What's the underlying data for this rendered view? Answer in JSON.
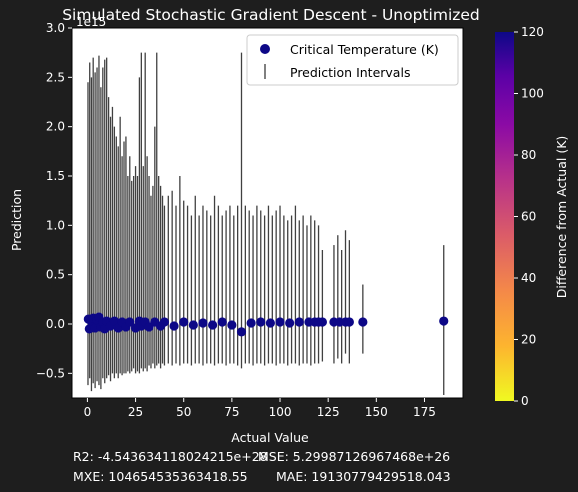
{
  "chart_data": {
    "type": "scatter",
    "title": "Simulated Stochastic Gradient Descent - Unoptimized",
    "xlabel": "Actual Value",
    "ylabel": "Prediction",
    "y_scale_label": "1e15",
    "xlim": [
      -8,
      195
    ],
    "ylim": [
      -0.75,
      3.0
    ],
    "x_ticks": [
      "0",
      "25",
      "50",
      "75",
      "100",
      "125",
      "150",
      "175"
    ],
    "y_ticks": [
      "−0.5",
      "0.0",
      "0.5",
      "1.0",
      "1.5",
      "2.0",
      "2.5",
      "3.0"
    ],
    "grid": false,
    "legend": {
      "placement": "top-right",
      "entries": [
        "Critical Temperature (K)",
        "Prediction Intervals"
      ]
    },
    "colorbar": {
      "label": "Difference from Actual (K)",
      "range": [
        0,
        120
      ],
      "ticks": [
        "0",
        "20",
        "40",
        "60",
        "80",
        "100",
        "120"
      ],
      "colormap": "plasma_r"
    },
    "series": [
      {
        "name": "Critical Temperature (K)",
        "marker": "circle",
        "color": "#0d0887",
        "points": [
          {
            "x": 0.5,
            "y": 0.05
          },
          {
            "x": 1,
            "y": -0.05
          },
          {
            "x": 2,
            "y": 0.03
          },
          {
            "x": 3,
            "y": 0.06
          },
          {
            "x": 4,
            "y": -0.04
          },
          {
            "x": 5,
            "y": 0.04
          },
          {
            "x": 6,
            "y": 0.07
          },
          {
            "x": 7,
            "y": -0.03
          },
          {
            "x": 8,
            "y": 0.02
          },
          {
            "x": 9,
            "y": -0.05
          },
          {
            "x": 10,
            "y": 0.03
          },
          {
            "x": 12,
            "y": -0.02
          },
          {
            "x": 14,
            "y": 0.03
          },
          {
            "x": 16,
            "y": -0.04
          },
          {
            "x": 18,
            "y": 0.02
          },
          {
            "x": 20,
            "y": -0.03
          },
          {
            "x": 22,
            "y": 0.02
          },
          {
            "x": 25,
            "y": -0.04
          },
          {
            "x": 27,
            "y": 0.03
          },
          {
            "x": 28,
            "y": -0.02
          },
          {
            "x": 30,
            "y": 0.02
          },
          {
            "x": 32,
            "y": -0.03
          },
          {
            "x": 35,
            "y": 0.02
          },
          {
            "x": 38,
            "y": -0.02
          },
          {
            "x": 40,
            "y": 0.02
          },
          {
            "x": 45,
            "y": -0.02
          },
          {
            "x": 50,
            "y": 0.02
          },
          {
            "x": 55,
            "y": -0.01
          },
          {
            "x": 60,
            "y": 0.01
          },
          {
            "x": 65,
            "y": -0.01
          },
          {
            "x": 70,
            "y": 0.02
          },
          {
            "x": 75,
            "y": -0.01
          },
          {
            "x": 80,
            "y": -0.08
          },
          {
            "x": 85,
            "y": 0.01
          },
          {
            "x": 90,
            "y": 0.02
          },
          {
            "x": 95,
            "y": 0.01
          },
          {
            "x": 100,
            "y": 0.02
          },
          {
            "x": 105,
            "y": 0.01
          },
          {
            "x": 110,
            "y": 0.02
          },
          {
            "x": 115,
            "y": 0.02
          },
          {
            "x": 118,
            "y": 0.02
          },
          {
            "x": 120,
            "y": 0.02
          },
          {
            "x": 122,
            "y": 0.02
          },
          {
            "x": 128,
            "y": 0.02
          },
          {
            "x": 131,
            "y": 0.02
          },
          {
            "x": 134,
            "y": 0.02
          },
          {
            "x": 136,
            "y": 0.02
          },
          {
            "x": 143,
            "y": 0.02
          },
          {
            "x": 185,
            "y": 0.03
          }
        ]
      },
      {
        "name": "Prediction Intervals",
        "marker": "errorbar",
        "color": "#000000",
        "intervals": [
          {
            "x": 0.3,
            "low": -0.62,
            "high": 2.45
          },
          {
            "x": 1.2,
            "low": -0.55,
            "high": 2.65
          },
          {
            "x": 2.1,
            "low": -0.68,
            "high": 2.5
          },
          {
            "x": 3,
            "low": -0.6,
            "high": 2.7
          },
          {
            "x": 4,
            "low": -0.65,
            "high": 2.55
          },
          {
            "x": 5,
            "low": -0.58,
            "high": 2.6
          },
          {
            "x": 6,
            "low": -0.62,
            "high": 2.72
          },
          {
            "x": 7,
            "low": -0.66,
            "high": 2.4
          },
          {
            "x": 8,
            "low": -0.55,
            "high": 2.6
          },
          {
            "x": 9,
            "low": -0.6,
            "high": 2.68
          },
          {
            "x": 10,
            "low": -0.55,
            "high": 2.7
          },
          {
            "x": 11,
            "low": -0.52,
            "high": 2.3
          },
          {
            "x": 12,
            "low": -0.58,
            "high": 2.1
          },
          {
            "x": 13,
            "low": -0.5,
            "high": 2.2
          },
          {
            "x": 14,
            "low": -0.55,
            "high": 2.0
          },
          {
            "x": 15,
            "low": -0.5,
            "high": 1.9
          },
          {
            "x": 16,
            "low": -0.55,
            "high": 1.8
          },
          {
            "x": 17,
            "low": -0.5,
            "high": 2.1
          },
          {
            "x": 18,
            "low": -0.52,
            "high": 1.7
          },
          {
            "x": 19,
            "low": -0.5,
            "high": 1.85
          },
          {
            "x": 20,
            "low": -0.5,
            "high": 1.9
          },
          {
            "x": 21,
            "low": -0.48,
            "high": 1.5
          },
          {
            "x": 22,
            "low": -0.5,
            "high": 1.7
          },
          {
            "x": 23,
            "low": -0.48,
            "high": 1.45
          },
          {
            "x": 24,
            "low": -0.45,
            "high": 1.5
          },
          {
            "x": 25,
            "low": -0.5,
            "high": 1.6
          },
          {
            "x": 26,
            "low": -0.48,
            "high": 1.5
          },
          {
            "x": 27,
            "low": -0.5,
            "high": 2.5
          },
          {
            "x": 28,
            "low": -0.45,
            "high": 2.75
          },
          {
            "x": 29,
            "low": -0.48,
            "high": 1.6
          },
          {
            "x": 30,
            "low": -0.45,
            "high": 2.75
          },
          {
            "x": 31,
            "low": -0.48,
            "high": 1.7
          },
          {
            "x": 32,
            "low": -0.42,
            "high": 1.5
          },
          {
            "x": 33,
            "low": -0.45,
            "high": 1.3
          },
          {
            "x": 34,
            "low": -0.4,
            "high": 1.4
          },
          {
            "x": 35,
            "low": -0.45,
            "high": 2.0
          },
          {
            "x": 36,
            "low": -0.42,
            "high": 2.75
          },
          {
            "x": 37,
            "low": -0.4,
            "high": 1.5
          },
          {
            "x": 38,
            "low": -0.45,
            "high": 1.4
          },
          {
            "x": 39,
            "low": -0.4,
            "high": 1.3
          },
          {
            "x": 40,
            "low": -0.42,
            "high": 1.2
          },
          {
            "x": 42,
            "low": -0.4,
            "high": 1.3
          },
          {
            "x": 44,
            "low": -0.42,
            "high": 1.35
          },
          {
            "x": 46,
            "low": -0.4,
            "high": 1.2
          },
          {
            "x": 48,
            "low": -0.42,
            "high": 1.5
          },
          {
            "x": 50,
            "low": -0.4,
            "high": 1.25
          },
          {
            "x": 52,
            "low": -0.4,
            "high": 1.2
          },
          {
            "x": 54,
            "low": -0.42,
            "high": 1.1
          },
          {
            "x": 56,
            "low": -0.4,
            "high": 1.3
          },
          {
            "x": 58,
            "low": -0.4,
            "high": 1.1
          },
          {
            "x": 60,
            "low": -0.42,
            "high": 1.2
          },
          {
            "x": 62,
            "low": -0.4,
            "high": 1.15
          },
          {
            "x": 64,
            "low": -0.4,
            "high": 1.1
          },
          {
            "x": 66,
            "low": -0.42,
            "high": 1.3
          },
          {
            "x": 68,
            "low": -0.4,
            "high": 1.2
          },
          {
            "x": 70,
            "low": -0.4,
            "high": 1.1
          },
          {
            "x": 72,
            "low": -0.42,
            "high": 1.15
          },
          {
            "x": 74,
            "low": -0.4,
            "high": 1.2
          },
          {
            "x": 76,
            "low": -0.4,
            "high": 1.1
          },
          {
            "x": 78,
            "low": -0.42,
            "high": 1.2
          },
          {
            "x": 80,
            "low": -0.45,
            "high": 2.75
          },
          {
            "x": 82,
            "low": -0.4,
            "high": 1.2
          },
          {
            "x": 84,
            "low": -0.4,
            "high": 1.15
          },
          {
            "x": 86,
            "low": -0.42,
            "high": 1.1
          },
          {
            "x": 88,
            "low": -0.4,
            "high": 1.2
          },
          {
            "x": 90,
            "low": -0.4,
            "high": 1.15
          },
          {
            "x": 92,
            "low": -0.42,
            "high": 1.1
          },
          {
            "x": 94,
            "low": -0.4,
            "high": 1.2
          },
          {
            "x": 96,
            "low": -0.4,
            "high": 1.1
          },
          {
            "x": 98,
            "low": -0.42,
            "high": 1.15
          },
          {
            "x": 100,
            "low": -0.4,
            "high": 1.2
          },
          {
            "x": 102,
            "low": -0.4,
            "high": 1.1
          },
          {
            "x": 104,
            "low": -0.42,
            "high": 1.05
          },
          {
            "x": 106,
            "low": -0.4,
            "high": 1.1
          },
          {
            "x": 108,
            "low": -0.4,
            "high": 1.2
          },
          {
            "x": 110,
            "low": -0.42,
            "high": 1.05
          },
          {
            "x": 112,
            "low": -0.4,
            "high": 1.1
          },
          {
            "x": 114,
            "low": -0.4,
            "high": 1.0
          },
          {
            "x": 116,
            "low": -0.42,
            "high": 1.1
          },
          {
            "x": 118,
            "low": -0.4,
            "high": 1.05
          },
          {
            "x": 120,
            "low": -0.4,
            "high": 1.0
          },
          {
            "x": 122,
            "low": -0.38,
            "high": 0.75
          },
          {
            "x": 128,
            "low": -0.4,
            "high": 0.8
          },
          {
            "x": 130,
            "low": -0.35,
            "high": 0.9
          },
          {
            "x": 132,
            "low": -0.4,
            "high": 0.75
          },
          {
            "x": 134,
            "low": -0.3,
            "high": 0.95
          },
          {
            "x": 136,
            "low": -0.4,
            "high": 0.85
          },
          {
            "x": 143,
            "low": -0.3,
            "high": 0.4
          },
          {
            "x": 185,
            "low": -0.72,
            "high": 0.8
          }
        ]
      }
    ]
  },
  "stats": {
    "r2": "R2: -4.543634118024215e+28",
    "mse": "MSE: 5.29987126967468e+26",
    "mxe": "MXE: 104654535363418.55",
    "mae": "MAE: 19130779429518.043"
  }
}
